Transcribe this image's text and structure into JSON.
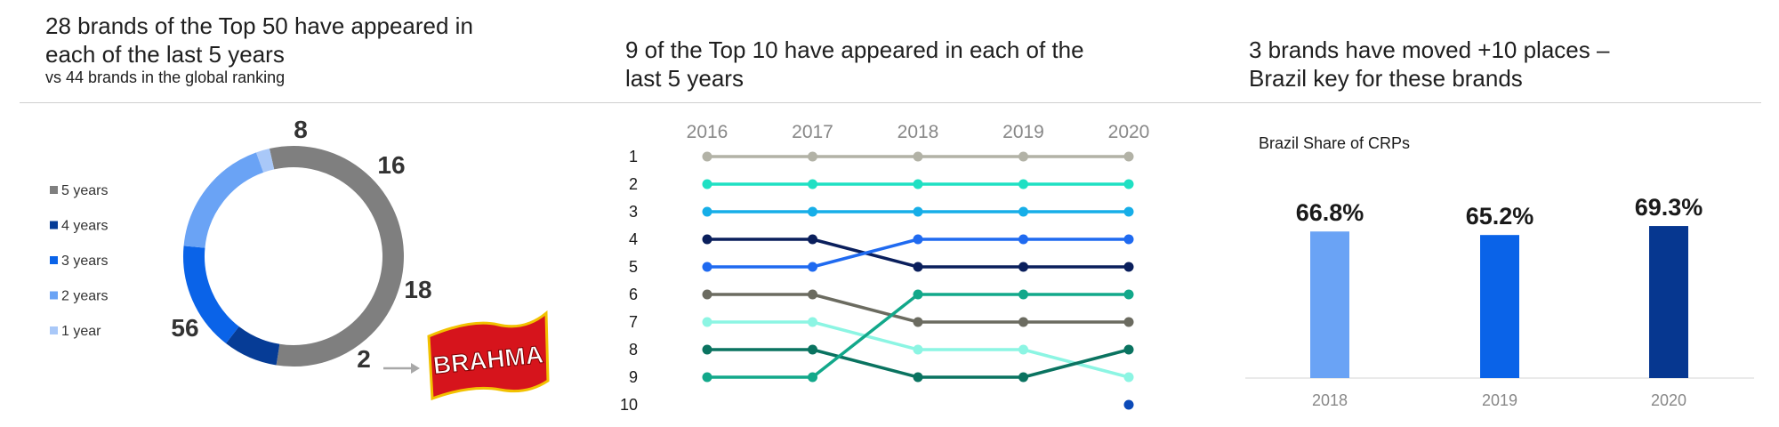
{
  "panels": {
    "left": {
      "headline_line1": "28 brands of the Top 50 have appeared in",
      "headline_line2": "each of the last 5 years",
      "subline": "vs 44 brands in the global ranking"
    },
    "middle": {
      "headline_line1": "9 of the Top 10 have appeared in each of the",
      "headline_line2": "last 5 years"
    },
    "right": {
      "headline_line1": "3 brands have moved +10 places –",
      "headline_line2": "Brazil key for these brands"
    }
  },
  "logo": {
    "text": "BRAHMA"
  },
  "colors": {
    "five_years": "#7f7f7f",
    "four_years": "#063c96",
    "three_years": "#0a63e8",
    "two_years": "#6aa3f5",
    "one_year": "#a9c8f8"
  },
  "chart_data": [
    {
      "type": "pie",
      "variant": "donut",
      "legend_position": "left",
      "categories": [
        "5 years",
        "4 years",
        "3 years",
        "2 years",
        "1 year"
      ],
      "values": [
        56,
        8,
        16,
        18,
        2
      ],
      "colors": [
        "#7f7f7f",
        "#063c96",
        "#0a63e8",
        "#6aa3f5",
        "#a9c8f8"
      ],
      "data_labels": [
        "56",
        "8",
        "16",
        "18",
        "2"
      ]
    },
    {
      "type": "line",
      "variant": "bump",
      "x": [
        "2016",
        "2017",
        "2018",
        "2019",
        "2020"
      ],
      "y_ticks": [
        "1",
        "2",
        "3",
        "4",
        "5",
        "6",
        "7",
        "8",
        "9",
        "10"
      ],
      "ylim": [
        1,
        10
      ],
      "y_inverted": true,
      "series": [
        {
          "color": "#b2b2a6",
          "values": [
            1,
            1,
            1,
            1,
            1
          ]
        },
        {
          "color": "#1fe0c3",
          "values": [
            2,
            2,
            2,
            2,
            2
          ]
        },
        {
          "color": "#16aee8",
          "values": [
            3,
            3,
            3,
            3,
            3
          ]
        },
        {
          "color": "#0a1f5c",
          "values": [
            4,
            4,
            5,
            5,
            5
          ]
        },
        {
          "color": "#1f6af0",
          "values": [
            5,
            5,
            4,
            4,
            4
          ]
        },
        {
          "color": "#6b6b60",
          "values": [
            6,
            6,
            7,
            7,
            7
          ]
        },
        {
          "color": "#8cf5e3",
          "values": [
            7,
            7,
            8,
            8,
            9
          ]
        },
        {
          "color": "#0a7360",
          "values": [
            8,
            8,
            9,
            9,
            8
          ]
        },
        {
          "color": "#12a88a",
          "values": [
            9,
            9,
            6,
            6,
            6
          ]
        },
        {
          "color": "#0b4ab8",
          "values": [
            null,
            null,
            null,
            null,
            10
          ]
        }
      ]
    },
    {
      "type": "bar",
      "title": "Brazil Share of CRPs",
      "categories": [
        "2018",
        "2019",
        "2020"
      ],
      "values": [
        66.8,
        65.2,
        69.3
      ],
      "data_labels": [
        "66.8%",
        "65.2%",
        "69.3%"
      ],
      "colors": [
        "#6aa3f5",
        "#0a63e8",
        "#063790"
      ]
    }
  ]
}
